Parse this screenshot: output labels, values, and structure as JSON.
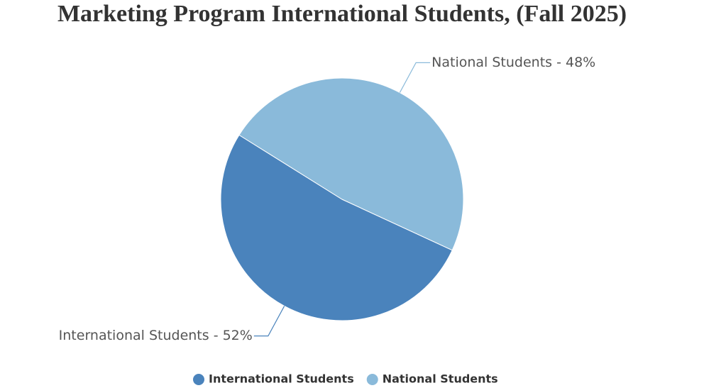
{
  "chart_data": {
    "type": "pie",
    "title": "Marketing Program International Students, (Fall 2025)",
    "categories": [
      "International Students",
      "National Students"
    ],
    "values": [
      52,
      48
    ],
    "value_labels": [
      "International Students - 52%",
      "National Students - 48%"
    ],
    "colors": [
      "#4a83bc",
      "#8abada"
    ],
    "legend": "bottom"
  }
}
